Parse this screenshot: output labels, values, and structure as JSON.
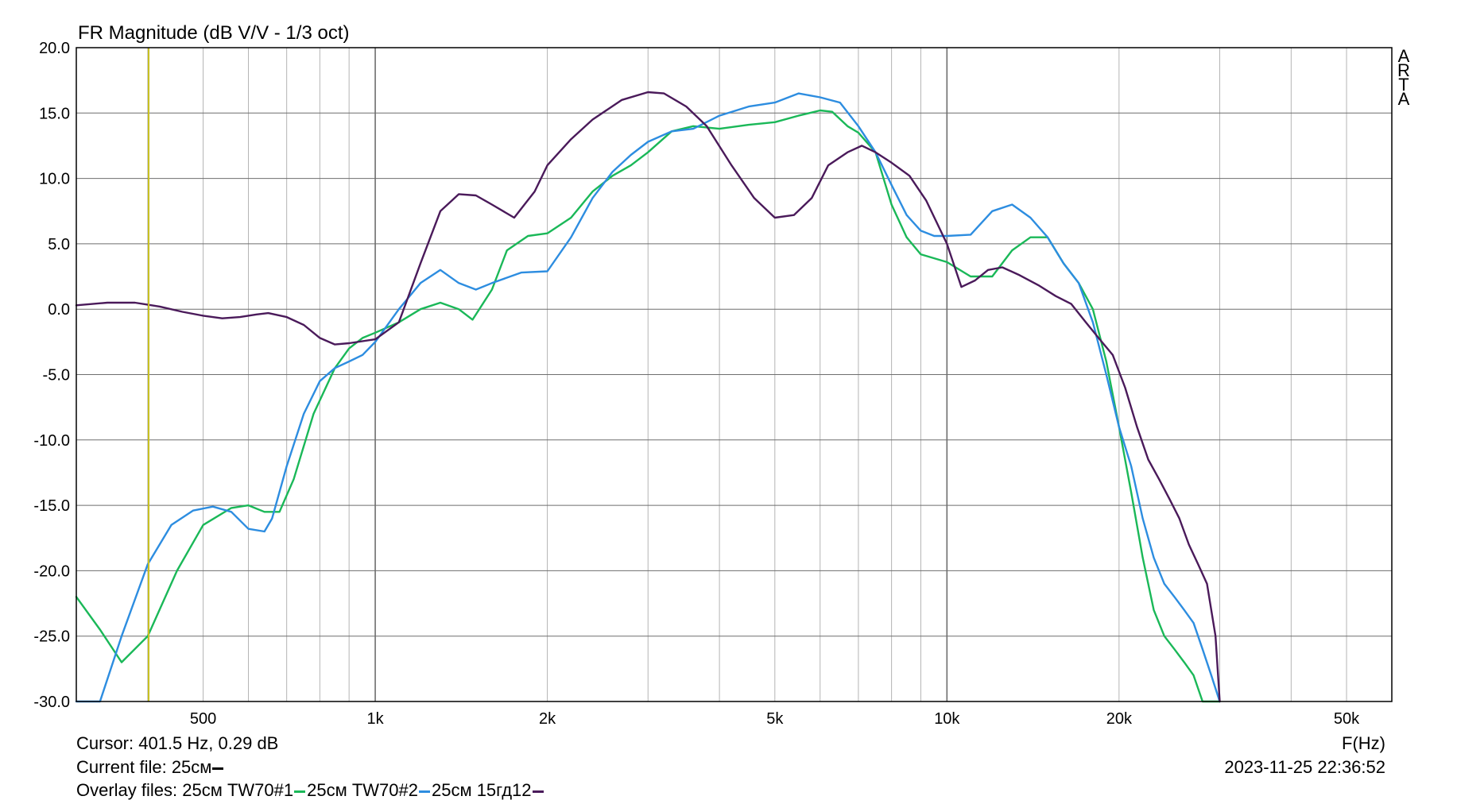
{
  "chart_data": {
    "type": "line",
    "title": "FR Magnitude (dB V/V - 1/3 oct)",
    "xlabel": "F(Hz)",
    "ylabel": "",
    "x_scale": "log",
    "xlim": [
      300,
      60000
    ],
    "ylim": [
      -30,
      20
    ],
    "yticks": [
      "20.0",
      "15.0",
      "10.0",
      "5.0",
      "0.0",
      "-5.0",
      "-10.0",
      "-15.0",
      "-20.0",
      "-25.0",
      "-30.0"
    ],
    "xtick_values": [
      500,
      1000,
      2000,
      5000,
      10000,
      20000,
      50000
    ],
    "xtick_labels": [
      "500",
      "1k",
      "2k",
      "5k",
      "10k",
      "20k",
      "50k"
    ],
    "grid": true,
    "cursor_x": 401.5,
    "colors": {
      "background": "#ffffff",
      "grid": "#b4b4b4",
      "grid_major": "#6e6e6e",
      "cursor": "#c8c020"
    },
    "series": [
      {
        "name": "25см TW70#1",
        "color": "#1ab858",
        "x": [
          300,
          330,
          360,
          400,
          450,
          500,
          560,
          600,
          640,
          680,
          720,
          780,
          850,
          900,
          950,
          1000,
          1100,
          1200,
          1300,
          1400,
          1480,
          1600,
          1700,
          1850,
          2000,
          2200,
          2400,
          2600,
          2800,
          3000,
          3300,
          3600,
          4000,
          4500,
          5000,
          5500,
          6000,
          6300,
          6700,
          7000,
          7500,
          8000,
          8500,
          9000,
          10000,
          11000,
          12000,
          13000,
          14000,
          15000,
          16000,
          17000,
          18000,
          19000,
          20000,
          21000,
          22000,
          23000,
          24000,
          25000,
          26000,
          27000,
          28000,
          29000,
          30000
        ],
        "y": [
          -22,
          -24.5,
          -27,
          -25,
          -20,
          -16.5,
          -15.2,
          -15,
          -15.5,
          -15.5,
          -13,
          -8,
          -4.5,
          -3,
          -2.2,
          -1.8,
          -1,
          0,
          0.5,
          0,
          -0.8,
          1.5,
          4.5,
          5.6,
          5.8,
          7,
          9,
          10.2,
          11,
          12,
          13.6,
          14,
          13.8,
          14.1,
          14.3,
          14.8,
          15.2,
          15.1,
          14,
          13.5,
          12,
          8,
          5.5,
          4.2,
          3.6,
          2.5,
          2.5,
          4.5,
          5.5,
          5.5,
          3.5,
          2,
          0,
          -4,
          -9,
          -14,
          -19,
          -23,
          -25,
          -26,
          -27,
          -28,
          -30,
          -30,
          -30
        ]
      },
      {
        "name": "25см TW70#2",
        "color": "#2d8de0",
        "x": [
          300,
          330,
          360,
          400,
          440,
          480,
          520,
          560,
          600,
          640,
          660,
          700,
          750,
          800,
          850,
          900,
          950,
          1000,
          1100,
          1200,
          1300,
          1400,
          1500,
          1600,
          1800,
          2000,
          2200,
          2400,
          2600,
          2800,
          3000,
          3300,
          3600,
          4000,
          4500,
          5000,
          5500,
          6000,
          6500,
          7000,
          7500,
          8000,
          8500,
          9000,
          9500,
          10000,
          11000,
          12000,
          13000,
          14000,
          15000,
          16000,
          17000,
          18000,
          19000,
          20000,
          21000,
          22000,
          23000,
          24000,
          25000,
          26000,
          27000,
          28000,
          29000,
          30000
        ],
        "y": [
          -30,
          -30,
          -25,
          -19.5,
          -16.5,
          -15.4,
          -15.1,
          -15.5,
          -16.8,
          -17,
          -16,
          -12,
          -8,
          -5.5,
          -4.5,
          -4,
          -3.5,
          -2.5,
          0,
          2,
          3,
          2,
          1.5,
          2,
          2.8,
          2.9,
          5.5,
          8.5,
          10.5,
          11.8,
          12.8,
          13.6,
          13.8,
          14.8,
          15.5,
          15.8,
          16.5,
          16.2,
          15.8,
          14,
          12,
          9.5,
          7.2,
          6,
          5.6,
          5.6,
          5.7,
          7.5,
          8,
          7,
          5.5,
          3.5,
          2,
          -1,
          -5,
          -9,
          -12,
          -16,
          -19,
          -21,
          -22,
          -23,
          -24,
          -26,
          -28,
          -30
        ]
      },
      {
        "name": "25см 15гд12",
        "color": "#4a1a5a",
        "x": [
          300,
          340,
          380,
          420,
          460,
          500,
          540,
          580,
          620,
          650,
          700,
          750,
          800,
          850,
          900,
          1000,
          1100,
          1200,
          1300,
          1400,
          1500,
          1600,
          1750,
          1900,
          2000,
          2200,
          2400,
          2700,
          3000,
          3200,
          3500,
          3800,
          4200,
          4600,
          5000,
          5400,
          5800,
          6200,
          6700,
          7100,
          7500,
          8000,
          8600,
          9200,
          10000,
          10600,
          11200,
          11800,
          12500,
          13400,
          14500,
          15500,
          16500,
          17500,
          18500,
          19500,
          20500,
          21500,
          22500,
          23500,
          24500,
          25500,
          26500,
          27500,
          28500,
          29500,
          30000
        ],
        "y": [
          0.3,
          0.5,
          0.5,
          0.2,
          -0.2,
          -0.5,
          -0.7,
          -0.6,
          -0.4,
          -0.3,
          -0.6,
          -1.2,
          -2.2,
          -2.7,
          -2.6,
          -2.3,
          -1,
          3.5,
          7.5,
          8.8,
          8.7,
          8,
          7,
          9,
          11,
          13,
          14.5,
          16,
          16.6,
          16.5,
          15.5,
          14,
          11,
          8.5,
          7,
          7.2,
          8.5,
          11,
          12,
          12.5,
          12,
          11.2,
          10.2,
          8.3,
          5,
          1.7,
          2.2,
          3,
          3.2,
          2.6,
          1.8,
          1,
          0.4,
          -1,
          -2.3,
          -3.5,
          -6,
          -9,
          -11.5,
          -13,
          -14.5,
          -16,
          -18,
          -19.5,
          -21,
          -25,
          -30
        ]
      }
    ]
  },
  "cursor": {
    "text": "Cursor: 401.5 Hz, 0.29 dB"
  },
  "current_file": {
    "label": "Current file: 25см"
  },
  "overlay": {
    "prefix": "Overlay files: ",
    "items": [
      "25см TW70#1",
      "25см TW70#2",
      "25см 15гд12"
    ]
  },
  "timestamp": "2023-11-25  22:36:52",
  "brand": [
    "A",
    "R",
    "T",
    "A"
  ]
}
